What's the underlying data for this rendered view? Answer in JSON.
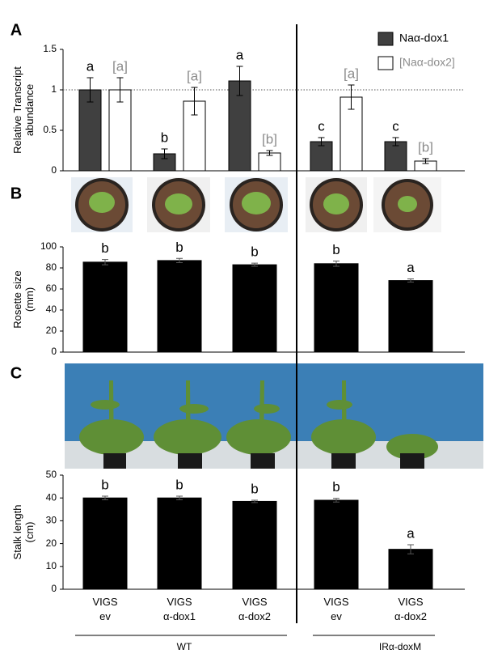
{
  "chart_data": [
    {
      "type": "bar",
      "panel": "A",
      "ylabel": [
        "Relative Transcript",
        "abundance"
      ],
      "ylim": [
        0,
        1.5
      ],
      "yticks": [
        0,
        0.5,
        1,
        1.5
      ],
      "reference_line": 1,
      "legend": "upper right",
      "series": [
        {
          "name": "Naα-dox1",
          "color": "#404040",
          "label_color": "#000000",
          "values": [
            1.0,
            0.21,
            1.11,
            0.36,
            0.36
          ],
          "errors": [
            0.15,
            0.06,
            0.18,
            0.05,
            0.05
          ],
          "letters": [
            "a",
            "b",
            "a",
            "c",
            "c"
          ]
        },
        {
          "name": "[Naα-dox2]",
          "color": "#ffffff",
          "label_color": "#8c8c8c",
          "values": [
            1.0,
            0.86,
            0.22,
            0.91,
            0.12
          ],
          "errors": [
            0.15,
            0.17,
            0.03,
            0.15,
            0.03
          ],
          "letters": [
            "[a]",
            "[a]",
            "[b]",
            "[a]",
            "[b]"
          ]
        }
      ]
    },
    {
      "type": "bar",
      "panel": "B",
      "ylabel": [
        "Rosette size",
        "(mm)"
      ],
      "ylim": [
        0,
        100
      ],
      "yticks": [
        0,
        20,
        40,
        60,
        80,
        100
      ],
      "series": [
        {
          "color": "#000000",
          "label_color": "#000000",
          "values": [
            85.5,
            87,
            83,
            84,
            68
          ],
          "errors": [
            2.5,
            2,
            1.5,
            2.5,
            1.5
          ],
          "letters": [
            "b",
            "b",
            "b",
            "b",
            "a"
          ]
        }
      ]
    },
    {
      "type": "bar",
      "panel": "C",
      "ylabel": [
        "Stalk length",
        "(cm)"
      ],
      "ylim": [
        0,
        50
      ],
      "yticks": [
        0,
        10,
        20,
        30,
        40,
        50
      ],
      "categories": [
        "VIGS ev",
        "VIGS α-dox1",
        "VIGS α-dox2",
        "VIGS ev",
        "VIGS α-dox2"
      ],
      "series": [
        {
          "color": "#000000",
          "label_color": "#000000",
          "values": [
            40,
            40,
            38.5,
            39,
            17.5
          ],
          "errors": [
            0.8,
            0.8,
            0.5,
            0.8,
            2
          ],
          "letters": [
            "b",
            "b",
            "b",
            "b",
            "a"
          ]
        }
      ]
    }
  ],
  "groups": [
    "WT",
    "IRα-doxM"
  ]
}
